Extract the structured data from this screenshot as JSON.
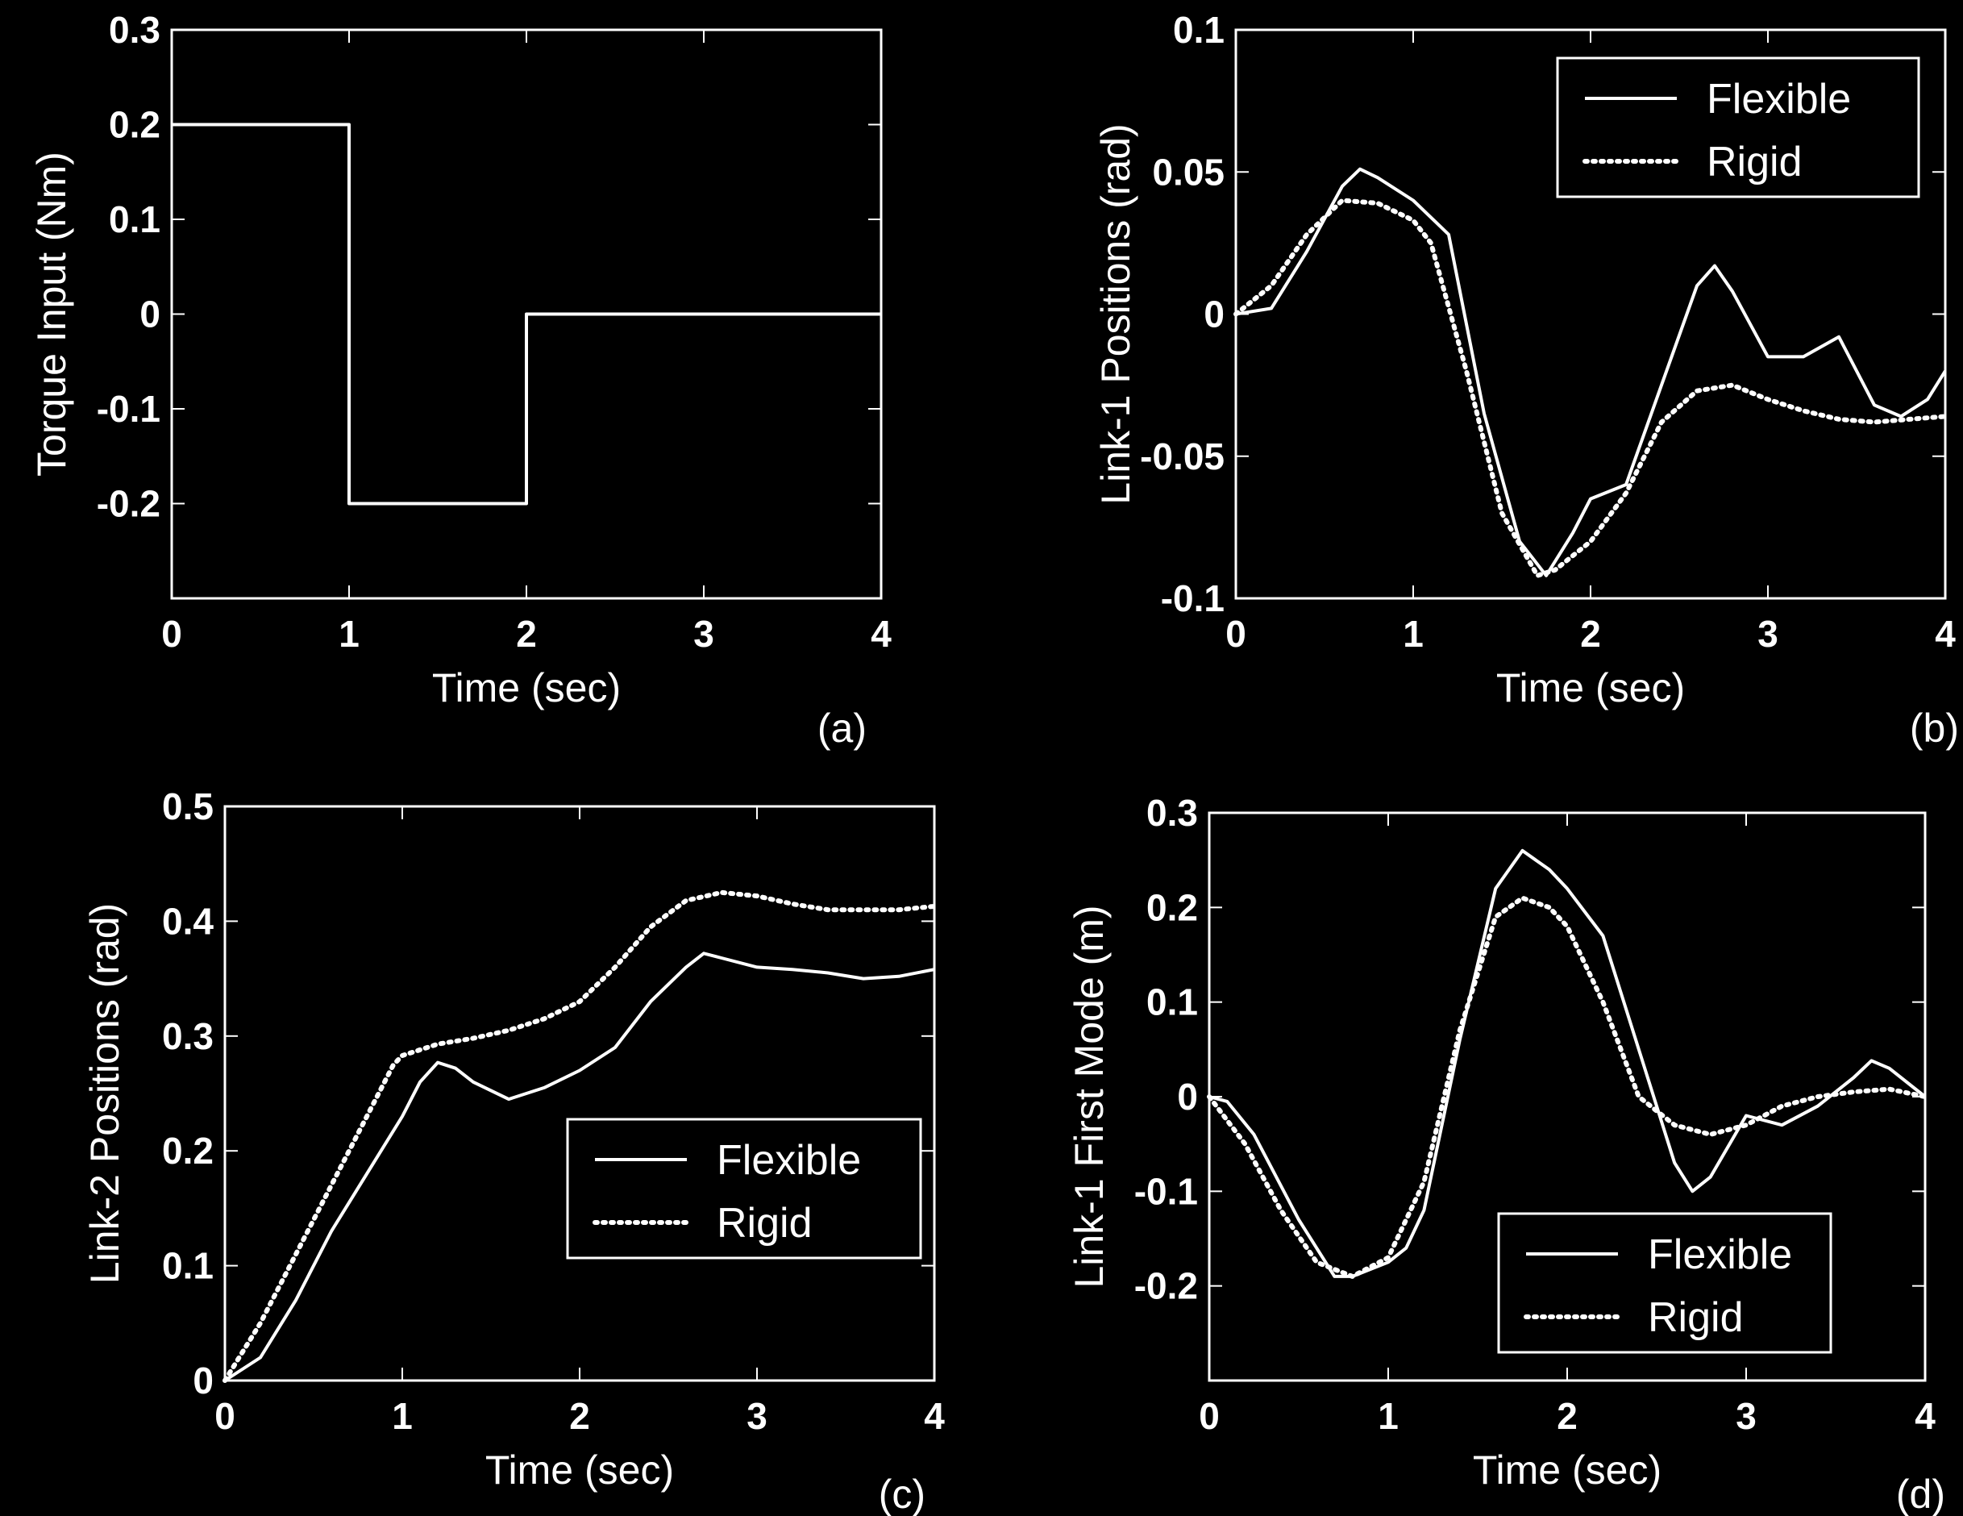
{
  "colors": {
    "background": "#000000",
    "foreground": "#ffffff"
  },
  "chart_data": [
    {
      "id": "a",
      "type": "line",
      "tag": "(a)",
      "xlabel": "Time (sec)",
      "ylabel": "Torque Input (Nm)",
      "xlim": [
        0,
        4
      ],
      "ylim": [
        -0.3,
        0.3
      ],
      "xticks": [
        "0",
        "1",
        "2",
        "3",
        "4"
      ],
      "yticks": [
        "0.3",
        "0.2",
        "0.1",
        "0",
        "-0.1",
        "-0.2"
      ],
      "ytick_values": [
        0.3,
        0.2,
        0.1,
        0,
        -0.1,
        -0.2
      ],
      "legend": null,
      "series": [
        {
          "style": "solid",
          "x": [
            0,
            1,
            1,
            2,
            2,
            4
          ],
          "y": [
            0.2,
            0.2,
            -0.2,
            -0.2,
            0.0,
            0.0
          ]
        }
      ]
    },
    {
      "id": "b",
      "type": "line",
      "tag": "(b)",
      "xlabel": "Time (sec)",
      "ylabel": "Link-1 Positions (rad)",
      "xlim": [
        0,
        4
      ],
      "ylim": [
        -0.1,
        0.1
      ],
      "xticks": [
        "0",
        "1",
        "2",
        "3",
        "4"
      ],
      "yticks": [
        "0.1",
        "0.05",
        "0",
        "-0.05",
        "-0.1"
      ],
      "ytick_values": [
        0.1,
        0.05,
        0,
        -0.05,
        -0.1
      ],
      "legend": {
        "position": "top-right",
        "entries": [
          "Flexible",
          "Rigid"
        ]
      },
      "series": [
        {
          "name": "Flexible",
          "style": "solid",
          "x": [
            0,
            0.2,
            0.4,
            0.6,
            0.7,
            0.8,
            1.0,
            1.2,
            1.4,
            1.6,
            1.75,
            1.9,
            2.0,
            2.2,
            2.4,
            2.6,
            2.7,
            2.8,
            3.0,
            3.2,
            3.4,
            3.6,
            3.75,
            3.9,
            4.0
          ],
          "y": [
            0.0,
            0.002,
            0.022,
            0.045,
            0.051,
            0.048,
            0.04,
            0.028,
            -0.035,
            -0.08,
            -0.092,
            -0.077,
            -0.065,
            -0.06,
            -0.025,
            0.01,
            0.017,
            0.008,
            -0.015,
            -0.015,
            -0.008,
            -0.032,
            -0.036,
            -0.03,
            -0.02
          ]
        },
        {
          "name": "Rigid",
          "style": "dotted",
          "x": [
            0,
            0.2,
            0.4,
            0.6,
            0.8,
            1.0,
            1.1,
            1.3,
            1.5,
            1.7,
            1.8,
            2.0,
            2.2,
            2.4,
            2.6,
            2.8,
            3.0,
            3.2,
            3.4,
            3.6,
            3.8,
            4.0
          ],
          "y": [
            0.0,
            0.01,
            0.028,
            0.04,
            0.039,
            0.033,
            0.025,
            -0.02,
            -0.07,
            -0.092,
            -0.09,
            -0.08,
            -0.063,
            -0.038,
            -0.027,
            -0.025,
            -0.03,
            -0.034,
            -0.037,
            -0.038,
            -0.037,
            -0.036
          ]
        }
      ]
    },
    {
      "id": "c",
      "type": "line",
      "tag": "(c)",
      "xlabel": "Time (sec)",
      "ylabel": "Link-2 Positions (rad)",
      "xlim": [
        0,
        4
      ],
      "ylim": [
        0,
        0.5
      ],
      "xticks": [
        "0",
        "1",
        "2",
        "3",
        "4"
      ],
      "yticks": [
        "0.5",
        "0.4",
        "0.3",
        "0.2",
        "0.1",
        "0"
      ],
      "ytick_values": [
        0.5,
        0.4,
        0.3,
        0.2,
        0.1,
        0
      ],
      "legend": {
        "position": "center-right",
        "entries": [
          "Flexible",
          "Rigid"
        ]
      },
      "series": [
        {
          "name": "Flexible",
          "style": "solid",
          "x": [
            0,
            0.2,
            0.4,
            0.6,
            0.8,
            1.0,
            1.1,
            1.2,
            1.3,
            1.4,
            1.6,
            1.8,
            2.0,
            2.2,
            2.4,
            2.6,
            2.7,
            2.8,
            3.0,
            3.2,
            3.4,
            3.6,
            3.8,
            4.0
          ],
          "y": [
            0.0,
            0.02,
            0.07,
            0.13,
            0.18,
            0.23,
            0.26,
            0.277,
            0.272,
            0.26,
            0.245,
            0.255,
            0.27,
            0.29,
            0.33,
            0.36,
            0.372,
            0.368,
            0.36,
            0.358,
            0.355,
            0.35,
            0.352,
            0.358
          ]
        },
        {
          "name": "Rigid",
          "style": "dotted",
          "x": [
            0,
            0.2,
            0.4,
            0.6,
            0.8,
            0.95,
            1.0,
            1.2,
            1.4,
            1.6,
            1.8,
            2.0,
            2.2,
            2.4,
            2.6,
            2.8,
            3.0,
            3.2,
            3.4,
            3.6,
            3.8,
            4.0
          ],
          "y": [
            0.0,
            0.05,
            0.11,
            0.17,
            0.23,
            0.275,
            0.283,
            0.293,
            0.298,
            0.305,
            0.315,
            0.33,
            0.36,
            0.395,
            0.418,
            0.425,
            0.422,
            0.415,
            0.41,
            0.41,
            0.41,
            0.413
          ]
        }
      ]
    },
    {
      "id": "d",
      "type": "line",
      "tag": "(d)",
      "xlabel": "Time (sec)",
      "ylabel": "Link-1 First Mode (m)",
      "xlim": [
        0,
        4
      ],
      "ylim": [
        -0.3,
        0.3
      ],
      "xticks": [
        "0",
        "1",
        "2",
        "3",
        "4"
      ],
      "yticks": [
        "0.3",
        "0.2",
        "0.1",
        "0",
        "-0.1",
        "-0.2"
      ],
      "ytick_values": [
        0.3,
        0.2,
        0.1,
        0,
        -0.1,
        -0.2
      ],
      "legend": {
        "position": "bottom-right",
        "entries": [
          "Flexible",
          "Rigid"
        ]
      },
      "series": [
        {
          "name": "Flexible",
          "style": "solid",
          "x": [
            0,
            0.1,
            0.25,
            0.5,
            0.7,
            0.8,
            1.0,
            1.1,
            1.2,
            1.4,
            1.6,
            1.75,
            1.9,
            2.0,
            2.2,
            2.4,
            2.6,
            2.7,
            2.8,
            3.0,
            3.2,
            3.4,
            3.6,
            3.7,
            3.8,
            4.0
          ],
          "y": [
            0.0,
            -0.005,
            -0.04,
            -0.13,
            -0.19,
            -0.19,
            -0.175,
            -0.16,
            -0.12,
            0.06,
            0.22,
            0.26,
            0.24,
            0.22,
            0.17,
            0.05,
            -0.07,
            -0.1,
            -0.085,
            -0.02,
            -0.03,
            -0.01,
            0.02,
            0.038,
            0.03,
            0.0
          ]
        },
        {
          "name": "Rigid",
          "style": "dotted",
          "x": [
            0,
            0.2,
            0.4,
            0.6,
            0.8,
            1.0,
            1.2,
            1.4,
            1.6,
            1.75,
            1.9,
            2.0,
            2.2,
            2.4,
            2.6,
            2.8,
            3.0,
            3.2,
            3.4,
            3.6,
            3.8,
            4.0
          ],
          "y": [
            0.0,
            -0.05,
            -0.12,
            -0.175,
            -0.19,
            -0.17,
            -0.09,
            0.07,
            0.19,
            0.21,
            0.2,
            0.18,
            0.1,
            0.0,
            -0.03,
            -0.04,
            -0.03,
            -0.01,
            0.0,
            0.005,
            0.008,
            0.0
          ]
        }
      ]
    }
  ]
}
